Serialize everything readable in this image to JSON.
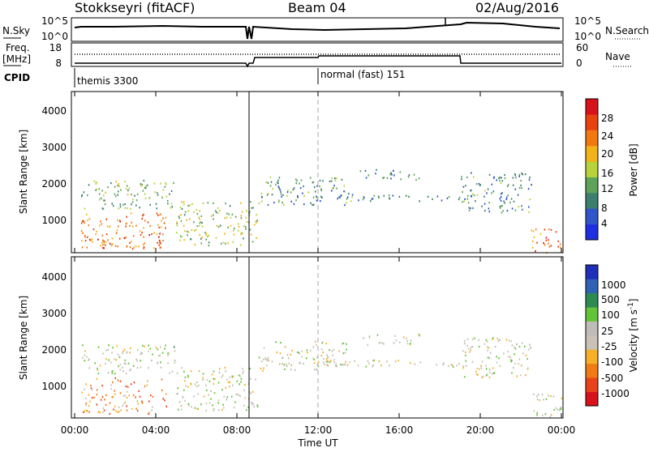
{
  "header": {
    "station": "Stokkseyri (fitACF)",
    "beam": "Beam 04",
    "date": "02/Aug/2016"
  },
  "params": {
    "nsky_label": "N.Sky",
    "nsky_ticks": [
      "10^5",
      "10^0"
    ],
    "nsearch_label": "N.Search",
    "nsearch_ticks": [
      "10^5",
      "10^0"
    ],
    "freq_label": "Freq.",
    "freq_unit": "[MHz]",
    "freq_ticks": [
      "18",
      "8"
    ],
    "nave_label": "Nave",
    "nave_ticks": [
      "60",
      "0"
    ],
    "cpid_label": "CPID",
    "cpid_segments": [
      "themis 3300",
      "normal (fast) 151"
    ]
  },
  "panels": [
    {
      "id": "power",
      "ylabel": "Slant Range [km]",
      "yticks": [
        "1000",
        "2000",
        "3000",
        "4000"
      ],
      "cbar_label": "Power [dB]",
      "cbar_ticks": [
        "4",
        "8",
        "12",
        "16",
        "20",
        "24",
        "28"
      ],
      "cbar_colors": [
        "#1e2ee0",
        "#2f55c8",
        "#3c7f6e",
        "#5da35a",
        "#b7d23a",
        "#f2b21a",
        "#f07a10",
        "#e8420e",
        "#d8121b"
      ]
    },
    {
      "id": "velocity",
      "ylabel": "Slant Range [km]",
      "yticks": [
        "1000",
        "2000",
        "3000",
        "4000"
      ],
      "cbar_label": "Velocity [m s",
      "cbar_label_sup": "-1",
      "cbar_label_close": "]",
      "cbar_ticks": [
        "1000",
        "500",
        "100",
        "25",
        "-25",
        "-100",
        "-500",
        "-1000"
      ],
      "cbar_colors": [
        "#1f2fb8",
        "#2f62b4",
        "#2d8a52",
        "#63c43a",
        "#bebcb8",
        "#c9c3b5",
        "#f5b028",
        "#f07a14",
        "#e8421a",
        "#d8121b"
      ]
    }
  ],
  "xaxis": {
    "label": "Time UT",
    "ticks": [
      "00:00",
      "04:00",
      "08:00",
      "12:00",
      "16:00",
      "20:00",
      "00:00"
    ]
  },
  "chart_data": {
    "type": "heatmap",
    "x_range": [
      "00:00",
      "24:00"
    ],
    "y_range_km": [
      180,
      4600
    ],
    "power_scale_db": [
      0,
      30
    ],
    "velocity_scale_ms": [
      -1000,
      1000
    ],
    "regions": [
      {
        "t": [
          0.3,
          4.5
        ],
        "r": [
          300,
          1300
        ],
        "power_db": 22,
        "velocity_ms": -450
      },
      {
        "t": [
          0.3,
          5.0
        ],
        "r": [
          1400,
          2200
        ],
        "power_db": 12,
        "velocity_ms": 60
      },
      {
        "t": [
          5.0,
          9.0
        ],
        "r": [
          400,
          1600
        ],
        "power_db": 14,
        "velocity_ms": 5
      },
      {
        "t": [
          9.0,
          13.5
        ],
        "r": [
          1500,
          2300
        ],
        "power_db": 10,
        "velocity_ms": 0
      },
      {
        "t": [
          11.5,
          19.0
        ],
        "r": [
          1600,
          1800
        ],
        "power_db": 9,
        "velocity_ms": 0
      },
      {
        "t": [
          14.0,
          17.0
        ],
        "r": [
          2200,
          2500
        ],
        "power_db": 8,
        "velocity_ms": 0
      },
      {
        "t": [
          19.0,
          22.5
        ],
        "r": [
          1300,
          2400
        ],
        "power_db": 9,
        "velocity_ms": 0
      },
      {
        "t": [
          22.5,
          24.0
        ],
        "r": [
          200,
          900
        ],
        "power_db": 22,
        "velocity_ms": 20
      }
    ]
  }
}
